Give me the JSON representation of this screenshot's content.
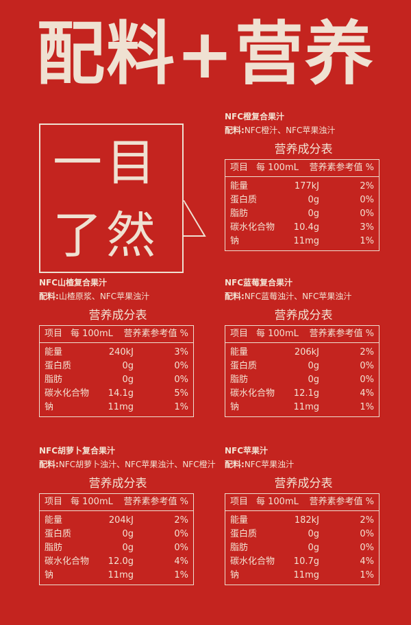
{
  "header": {
    "title": "配料+营养"
  },
  "bubble": {
    "line1": "一目",
    "line2": "了然"
  },
  "colors": {
    "background": "#c4241f",
    "text": "#f3e3d3"
  },
  "ingredient_label": "配料:",
  "table_title": "营养成分表",
  "table_headers": [
    "项目",
    "每 100mL",
    "营养素参考值 %"
  ],
  "products": [
    {
      "name": "NFC橙复合果汁",
      "ingredients": "NFC橙汁、NFC苹果浊汁",
      "rows": [
        [
          "能量",
          "177kJ",
          "2%"
        ],
        [
          "蛋白质",
          "0g",
          "0%"
        ],
        [
          "脂肪",
          "0g",
          "0%"
        ],
        [
          "碳水化合物",
          "10.4g",
          "3%"
        ],
        [
          "钠",
          "11mg",
          "1%"
        ]
      ]
    },
    {
      "name": "NFC山楂复合果汁",
      "ingredients": "山楂原浆、NFC苹果浊汁",
      "rows": [
        [
          "能量",
          "240kJ",
          "3%"
        ],
        [
          "蛋白质",
          "0g",
          "0%"
        ],
        [
          "脂肪",
          "0g",
          "0%"
        ],
        [
          "碳水化合物",
          "14.1g",
          "5%"
        ],
        [
          "钠",
          "11mg",
          "1%"
        ]
      ]
    },
    {
      "name": "NFC蓝莓复合果汁",
      "ingredients": "NFC蓝莓浊汁、NFC苹果浊汁",
      "rows": [
        [
          "能量",
          "206kJ",
          "2%"
        ],
        [
          "蛋白质",
          "0g",
          "0%"
        ],
        [
          "脂肪",
          "0g",
          "0%"
        ],
        [
          "碳水化合物",
          "12.1g",
          "4%"
        ],
        [
          "钠",
          "11mg",
          "1%"
        ]
      ]
    },
    {
      "name": "NFC胡萝卜复合果汁",
      "ingredients": "NFC胡萝卜浊汁、NFC苹果浊汁、NFC橙汁",
      "rows": [
        [
          "能量",
          "204kJ",
          "2%"
        ],
        [
          "蛋白质",
          "0g",
          "0%"
        ],
        [
          "脂肪",
          "0g",
          "0%"
        ],
        [
          "碳水化合物",
          "12.0g",
          "4%"
        ],
        [
          "钠",
          "11mg",
          "1%"
        ]
      ]
    },
    {
      "name": "NFC苹果汁",
      "ingredients": "NFC苹果浊汁",
      "rows": [
        [
          "能量",
          "182kJ",
          "2%"
        ],
        [
          "蛋白质",
          "0g",
          "0%"
        ],
        [
          "脂肪",
          "0g",
          "0%"
        ],
        [
          "碳水化合物",
          "10.7g",
          "4%"
        ],
        [
          "钠",
          "11mg",
          "1%"
        ]
      ]
    }
  ]
}
